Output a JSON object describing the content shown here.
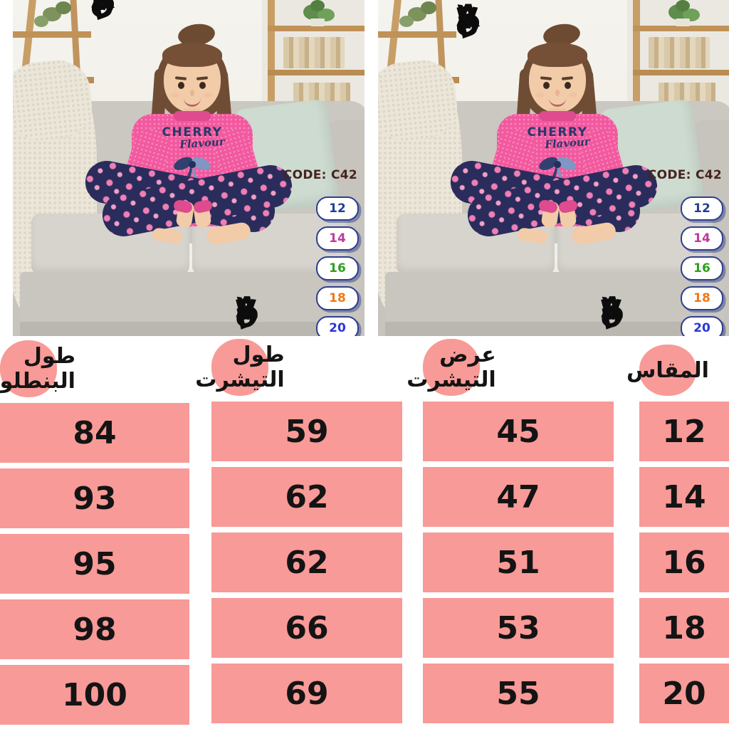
{
  "photo": {
    "brand_top": "BRAVO",
    "brand_bottom": "BRAVO",
    "code_label": "CODE: C42",
    "shirt_print": {
      "line1": "CHERRY",
      "line2": "Flavour"
    },
    "size_badges": [
      {
        "label": "12",
        "color": "#23408e"
      },
      {
        "label": "14",
        "color": "#c03a9b"
      },
      {
        "label": "16",
        "color": "#2f9e1f"
      },
      {
        "label": "18",
        "color": "#f07818"
      },
      {
        "label": "20",
        "color": "#2b35d8"
      }
    ]
  },
  "size_table": {
    "direction": "rtl",
    "columns": [
      {
        "key": "size",
        "label": "المقاس"
      },
      {
        "key": "shirt_width",
        "label": "عرض التيشرت"
      },
      {
        "key": "shirt_length",
        "label": "طول التيشرت"
      },
      {
        "key": "pants_length",
        "label": "طول البنطلون"
      }
    ],
    "rows": [
      {
        "size": "12",
        "shirt_width": "45",
        "shirt_length": "59",
        "pants_length": "84"
      },
      {
        "size": "14",
        "shirt_width": "47",
        "shirt_length": "62",
        "pants_length": "93"
      },
      {
        "size": "16",
        "shirt_width": "51",
        "shirt_length": "62",
        "pants_length": "95"
      },
      {
        "size": "18",
        "shirt_width": "53",
        "shirt_length": "66",
        "pants_length": "98"
      },
      {
        "size": "20",
        "shirt_width": "55",
        "shirt_length": "69",
        "pants_length": "100"
      }
    ]
  },
  "colors": {
    "table_cell": "#f89a97",
    "code_text": "#46241e",
    "badge_border": "#2e3f8e",
    "brand_text": "#0c0c0c"
  }
}
